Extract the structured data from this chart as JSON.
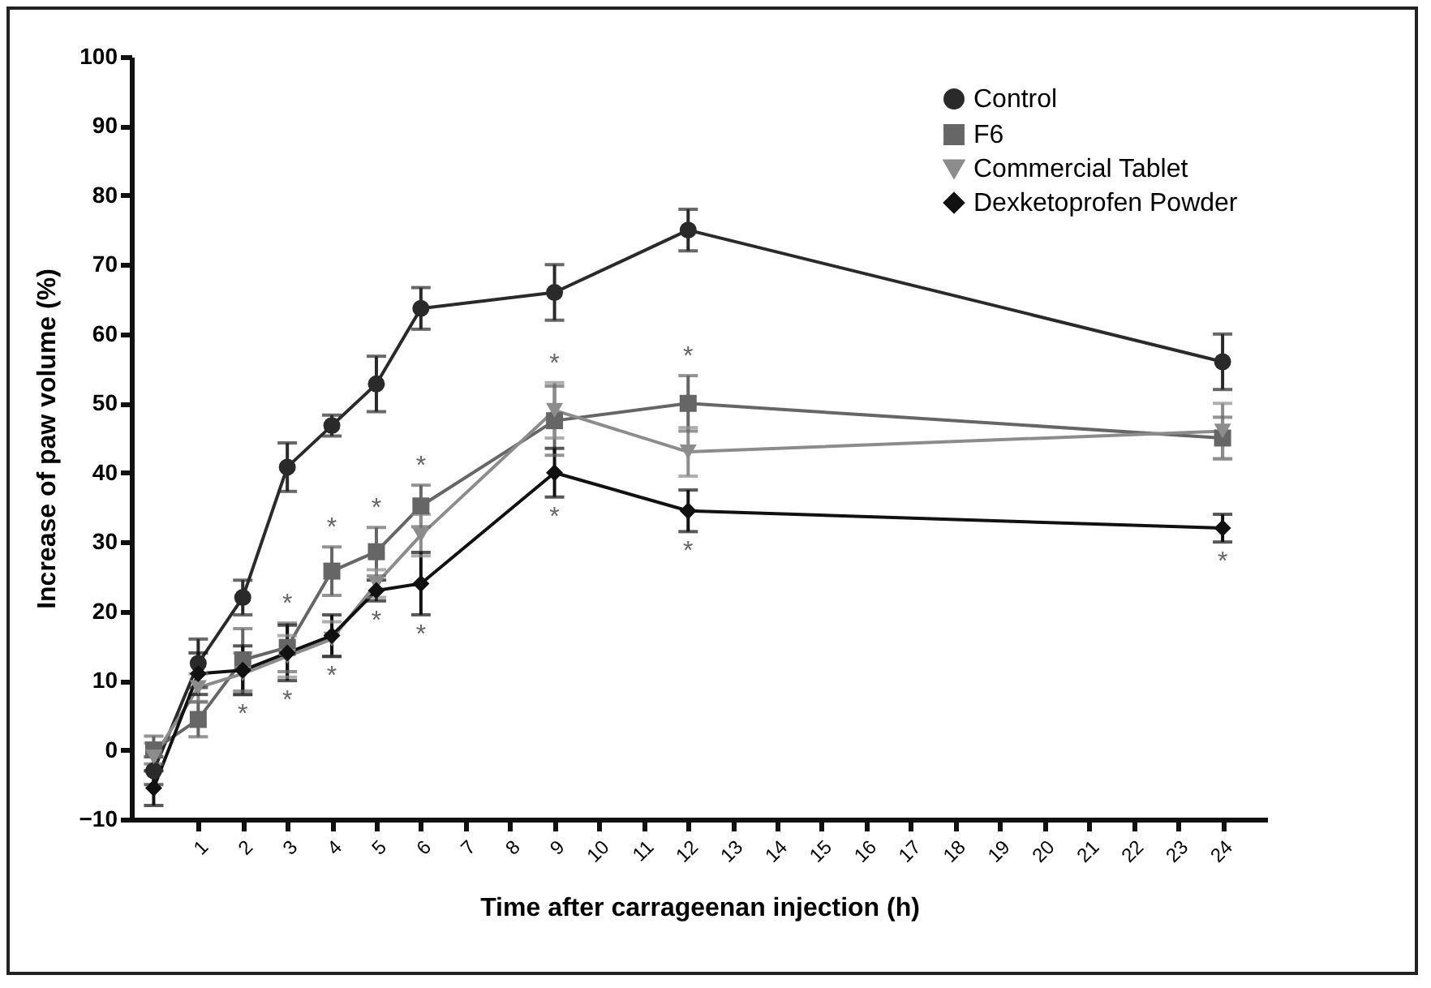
{
  "chart_data": {
    "type": "line",
    "xlabel": "Time after carrageenan injection (h)",
    "ylabel": "Increase of paw volume (%)",
    "x": [
      0,
      1,
      2,
      3,
      4,
      5,
      6,
      9,
      12,
      24
    ],
    "series": [
      {
        "name": "Control",
        "color": "#2a2a2a",
        "marker": "circle",
        "values": [
          -3,
          12.5,
          22,
          40.8,
          46.8,
          52.8,
          63.7,
          66,
          75,
          56
        ],
        "errors": [
          2,
          3.5,
          2.5,
          3.5,
          1.5,
          4,
          3,
          4,
          3,
          4
        ]
      },
      {
        "name": "F6",
        "color": "#666666",
        "marker": "square",
        "values": [
          0,
          4.4,
          13,
          14.8,
          25.8,
          28.6,
          35.2,
          47.5,
          50,
          45
        ],
        "errors": [
          2,
          2.5,
          4.5,
          3.5,
          3.5,
          3.5,
          3,
          5,
          4,
          3
        ]
      },
      {
        "name": "Commercial Tablet",
        "color": "#8c8c8c",
        "marker": "triangle-down",
        "values": [
          -1,
          9,
          11,
          13.5,
          16,
          24,
          31,
          49,
          43,
          46
        ],
        "errors": [
          2,
          2,
          3,
          3,
          2.5,
          2,
          3,
          4,
          3.5,
          4
        ]
      },
      {
        "name": "Dexketoprofen Powder",
        "color": "#111111",
        "marker": "diamond",
        "values": [
          -5.5,
          11,
          11.5,
          14,
          16.5,
          23,
          24,
          40,
          34.5,
          32
        ],
        "errors": [
          2.5,
          3,
          3.5,
          4,
          3,
          1.5,
          4.5,
          3.5,
          3,
          2
        ]
      }
    ],
    "xlim": [
      -0.5,
      25
    ],
    "xticks": [
      1,
      2,
      3,
      4,
      5,
      6,
      7,
      8,
      9,
      10,
      11,
      12,
      13,
      14,
      15,
      16,
      17,
      18,
      19,
      20,
      21,
      22,
      23,
      24
    ],
    "ylim": [
      -10,
      100
    ],
    "yticks": [
      -10,
      0,
      10,
      20,
      30,
      40,
      50,
      60,
      70,
      80,
      90,
      100
    ],
    "grid": false,
    "legend": "top right",
    "line_style": "solid",
    "annotations": [
      {
        "text": "*",
        "x": 2,
        "y": 8
      },
      {
        "text": "*",
        "x": 3,
        "y": 10
      },
      {
        "text": "*",
        "x": 3,
        "y": 18.3
      },
      {
        "text": "*",
        "x": 4,
        "y": 13.5
      },
      {
        "text": "*",
        "x": 4,
        "y": 29.3
      },
      {
        "text": "*",
        "x": 5,
        "y": 21.5
      },
      {
        "text": "*",
        "x": 5,
        "y": 32.1
      },
      {
        "text": "*",
        "x": 6,
        "y": 19.5
      },
      {
        "text": "*",
        "x": 6,
        "y": 38.2
      },
      {
        "text": "*",
        "x": 9,
        "y": 53
      },
      {
        "text": "*",
        "x": 9,
        "y": 36.5
      },
      {
        "text": "*",
        "x": 12,
        "y": 54
      },
      {
        "text": "*",
        "x": 12,
        "y": 31.5
      },
      {
        "text": "*",
        "x": 24,
        "y": 30
      }
    ]
  }
}
